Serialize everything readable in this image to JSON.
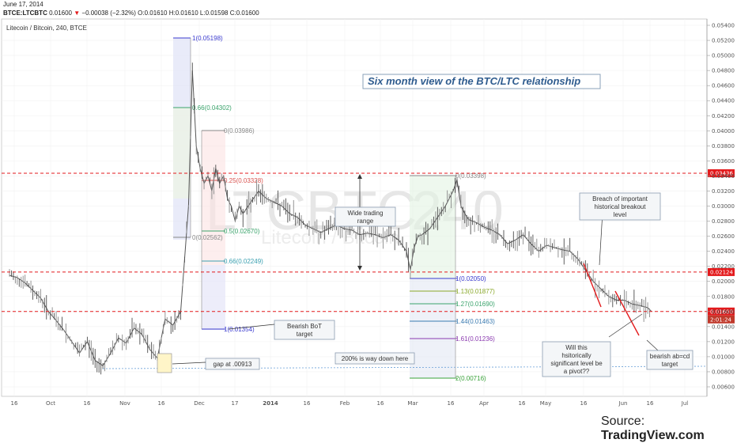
{
  "header": {
    "date": "June 17, 2014",
    "symbol": "BTCE:LTCBTC",
    "last": "0.01600",
    "change": "−0.00038 (−2.32%)",
    "open": "O:0.01610",
    "high": "H:0.01610",
    "low": "L:0.01598",
    "close": "C:0.01600"
  },
  "chart_title": "Litecoin / Bitcoin, 240, BTCE",
  "watermark": {
    "symbol": "LTCBTC",
    "interval": "240",
    "name": "Litecoin / Bitcoin"
  },
  "main_annotation": "Six month view of the BTC/LTC relationship",
  "source": {
    "prefix": "Source: ",
    "brand": "TradingView.com"
  },
  "colors": {
    "red": "#e31a1c",
    "candle_up": "#4d4d4d",
    "candle_down": "#7a7a7a"
  },
  "chart_data": {
    "type": "line",
    "title": "Litecoin / Bitcoin, 240, BTCE",
    "ylim": [
      0.0055,
      0.055
    ],
    "yticks": [
      "0.05400",
      "0.05200",
      "0.05000",
      "0.04800",
      "0.04600",
      "0.04400",
      "0.04200",
      "0.04000",
      "0.03800",
      "0.03600",
      "0.03400",
      "0.03200",
      "0.03000",
      "0.02800",
      "0.02600",
      "0.02400",
      "0.02200",
      "0.02000",
      "0.01800",
      "0.01600",
      "0.01400",
      "0.01200",
      "0.01000",
      "0.00800",
      "0.00600"
    ],
    "xticks": [
      "16",
      "Oct",
      "16",
      "Nov",
      "16",
      "Dec",
      "17",
      "2014",
      "16",
      "Feb",
      "16",
      "Mar",
      "16",
      "Apr",
      "16",
      "May",
      "16",
      "Jun",
      "16",
      "Jul"
    ],
    "price_labels": [
      {
        "text": "0.03436",
        "value": 0.03436
      },
      {
        "text": "0.02124",
        "value": 0.02124
      },
      {
        "text": "0.01600",
        "value": 0.016
      },
      {
        "text": "2:01:24",
        "value": 0.0152
      }
    ],
    "horizontal_levels": [
      0.03436,
      0.02124,
      0.016
    ],
    "series": [
      {
        "x": [
          0,
          10,
          20,
          30,
          40,
          50,
          60,
          70,
          80,
          90,
          100,
          110,
          120,
          130,
          140,
          150,
          160,
          170,
          180,
          190,
          200,
          210,
          220,
          230,
          235,
          240,
          245,
          250,
          255,
          260,
          265,
          270,
          275,
          280,
          285,
          290,
          295,
          300,
          310,
          320,
          330,
          340,
          350,
          360,
          370,
          380,
          390,
          400,
          410,
          420,
          430,
          440,
          450,
          460,
          470,
          480,
          490,
          500,
          510,
          515,
          520,
          525,
          530,
          540,
          550,
          560,
          570,
          575,
          580,
          585,
          590,
          600,
          610,
          620,
          630,
          640,
          650,
          660,
          670,
          680,
          690,
          700,
          710,
          720,
          730,
          740,
          750,
          760,
          770,
          780,
          790,
          800,
          810,
          820,
          825
        ],
        "values": [
          0.0208,
          0.0205,
          0.0198,
          0.0188,
          0.0178,
          0.016,
          0.0148,
          0.0135,
          0.012,
          0.0105,
          0.012,
          0.0095,
          0.0088,
          0.0105,
          0.0125,
          0.0118,
          0.0138,
          0.013,
          0.011,
          0.0098,
          0.015,
          0.0142,
          0.016,
          0.03,
          0.048,
          0.038,
          0.035,
          0.033,
          0.034,
          0.032,
          0.035,
          0.033,
          0.034,
          0.031,
          0.03,
          0.028,
          0.03,
          0.029,
          0.0305,
          0.032,
          0.031,
          0.0305,
          0.03,
          0.029,
          0.0285,
          0.0275,
          0.027,
          0.0265,
          0.027,
          0.0275,
          0.027,
          0.0268,
          0.0262,
          0.0264,
          0.0262,
          0.0258,
          0.0262,
          0.0255,
          0.024,
          0.0215,
          0.0245,
          0.026,
          0.0262,
          0.027,
          0.0285,
          0.03,
          0.032,
          0.0335,
          0.03,
          0.029,
          0.0282,
          0.0278,
          0.0272,
          0.0268,
          0.0262,
          0.025,
          0.0255,
          0.0262,
          0.025,
          0.024,
          0.0248,
          0.0245,
          0.0242,
          0.024,
          0.023,
          0.0215,
          0.02,
          0.019,
          0.018,
          0.0175,
          0.0175,
          0.017,
          0.0168,
          0.0165,
          0.016
        ]
      }
    ],
    "fib_left": [
      {
        "label": "1(0.05198)",
        "color": "#3b3bcf"
      },
      {
        "label": "0.66(0.04302)",
        "color": "#3aa36b"
      },
      {
        "label": "0(0.03986)",
        "color": "#888888"
      },
      {
        "label": "0.25(0.03328)",
        "color": "#d9534f"
      },
      {
        "label": "0.5(0.02670)",
        "color": "#3aa36b"
      },
      {
        "label": "0(0.02562)",
        "color": "#888888"
      },
      {
        "label": "0.66(0.02249)",
        "color": "#3aa0b0"
      },
      {
        "label": "1(0.01354)",
        "color": "#3b3bcf"
      }
    ],
    "fib_right": [
      {
        "label": "0(0.03398)",
        "color": "#888888"
      },
      {
        "label": "1(0.02050)",
        "color": "#3b3bcf"
      },
      {
        "label": "1.13(0.01877)",
        "color": "#8aa82a"
      },
      {
        "label": "1.27(0.01690)",
        "color": "#3aa36b"
      },
      {
        "label": "1.44(0.01463)",
        "color": "#3a7ab0"
      },
      {
        "label": "1.61(0.01236)",
        "color": "#8b3ab0"
      },
      {
        "label": "2(0.00716)",
        "color": "#3aa33a"
      }
    ],
    "annotations": [
      "Wide trading range",
      "Bearish BoT target",
      "gap at .00913",
      "200% is way down here",
      "Breach of important historical breakout level",
      "Will this hsitorically significant level be a pivot??",
      "bearish ab=cd target"
    ]
  }
}
